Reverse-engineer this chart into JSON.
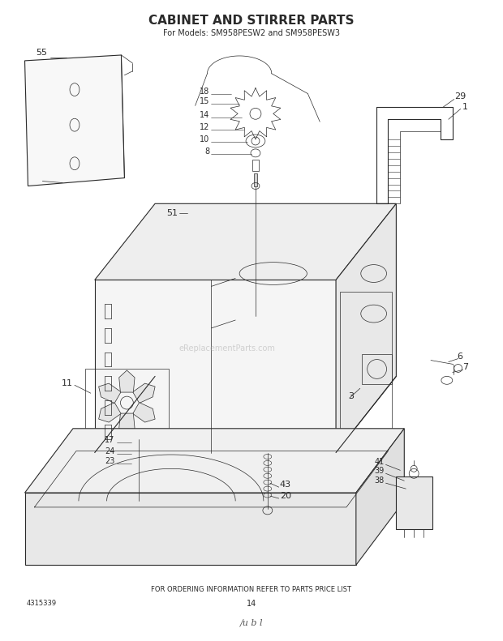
{
  "title": "CABINET AND STIRRER PARTS",
  "subtitle": "For Models: SM958PESW2 and SM958PESW3",
  "footer": "FOR ORDERING INFORMATION REFER TO PARTS PRICE LIST",
  "doc_number": "4315339",
  "page_number": "14",
  "watermark": "eReplacementParts.com",
  "bg_color": "#ffffff",
  "line_color": "#2a2a2a",
  "title_fontsize": 11,
  "subtitle_fontsize": 7,
  "footer_fontsize": 6,
  "label_fontsize": 7
}
